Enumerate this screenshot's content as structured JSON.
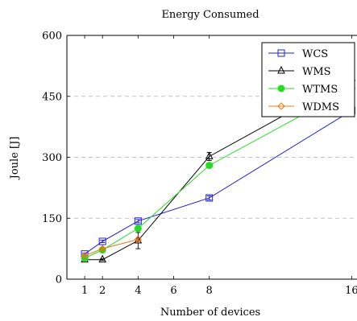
{
  "chart_data": {
    "type": "line",
    "title": "Energy Consumed",
    "xlabel": "Number of devices",
    "ylabel": "Joule [J]",
    "xlim": [
      0,
      16.3
    ],
    "ylim": [
      0,
      600
    ],
    "xticks": [
      1,
      2,
      4,
      6,
      8,
      16
    ],
    "yticks": [
      0,
      150,
      300,
      450,
      600
    ],
    "grid": "horizontal dashed at 150, 300, 450",
    "legend_position": "top-right",
    "series": [
      {
        "name": "WCS",
        "color": "#1f1fd6",
        "marker": "square",
        "x": [
          1,
          2,
          4,
          8,
          16
        ],
        "y": [
          62,
          93,
          143,
          200,
          415
        ],
        "err": [
          2,
          3,
          4,
          5,
          5
        ]
      },
      {
        "name": "WMS",
        "color": "#000000",
        "marker": "triangle",
        "x": [
          1,
          2,
          4,
          8,
          16
        ],
        "y": [
          48,
          48,
          95,
          302,
          495
        ],
        "err": [
          2,
          2,
          20,
          10,
          5
        ]
      },
      {
        "name": "WTMS",
        "color": "#22dd22",
        "marker": "circle",
        "x": [
          1,
          2,
          4,
          8,
          16
        ],
        "y": [
          52,
          72,
          125,
          280,
          470
        ],
        "err": [
          2,
          3,
          4,
          6,
          5
        ]
      },
      {
        "name": "WDMS",
        "color": "#ee7711",
        "marker": "diamond",
        "x": [
          1,
          2,
          4
        ],
        "y": [
          58,
          75,
          98
        ],
        "err": [
          2,
          2,
          3
        ]
      }
    ]
  }
}
